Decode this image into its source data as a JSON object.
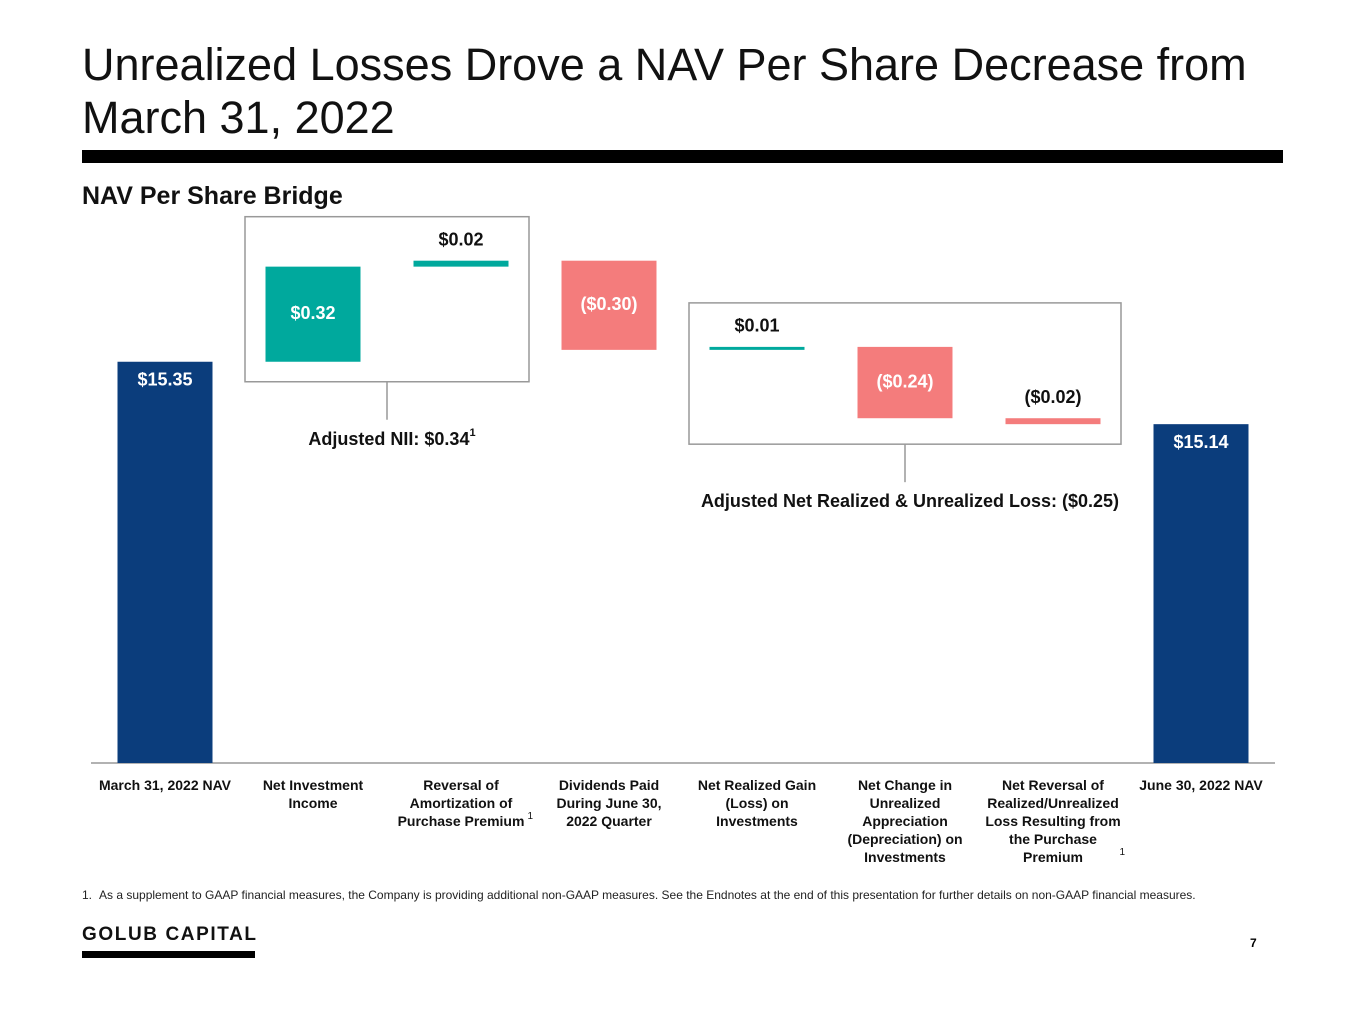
{
  "title": "Unrealized Losses Drove a NAV Per Share Decrease from March 31, 2022",
  "chart_data": {
    "type": "waterfall",
    "subtitle": "NAV Per Share Bridge",
    "categories": [
      "March 31, 2022 NAV",
      "Net Investment Income",
      "Reversal of Amortization of Purchase Premium",
      "Dividends Paid During June 30, 2022 Quarter",
      "Net Realized Gain (Loss) on Investments",
      "Net Change in Unrealized Appreciation (Depreciation) on Investments",
      "Net Reversal of Realized/Unrealized Loss Resulting from the Purchase Premium",
      "June 30, 2022 NAV"
    ],
    "values": [
      15.35,
      0.32,
      0.02,
      -0.3,
      0.01,
      -0.24,
      -0.02,
      15.14
    ],
    "value_labels": [
      "$15.35",
      "$0.32",
      "$0.02",
      "($0.30)",
      "$0.01",
      "($0.24)",
      "($0.02)",
      "$15.14"
    ],
    "totals": [
      true,
      false,
      false,
      false,
      false,
      false,
      false,
      true
    ],
    "colors": {
      "total": "#0b3d7c",
      "increase": "#00a99d",
      "decrease": "#f47c7c"
    },
    "ylim": [
      14,
      15.8
    ],
    "category_footnotes": {
      "2": "1",
      "6": "1"
    },
    "groups": [
      {
        "label": "Adjusted NII: $0.34",
        "footnote": "1"
      },
      {
        "label": "Adjusted Net Realized & Unrealized Loss: ($0.25)"
      }
    ]
  },
  "footnotes": [
    {
      "marker": "1.",
      "text": "As a supplement to GAAP financial measures, the Company is providing additional non-GAAP measures. See the Endnotes at the end of this presentation for further details on non-GAAP financial measures."
    }
  ],
  "logo": "GOLUB CAPITAL",
  "page_number": "7"
}
